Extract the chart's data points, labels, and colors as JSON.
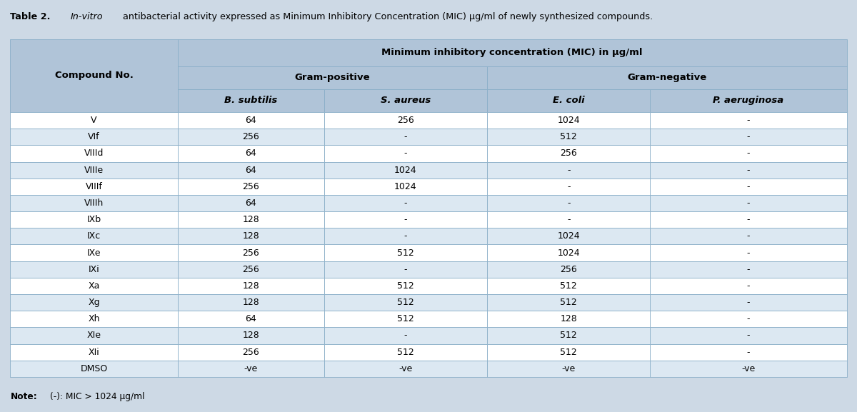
{
  "title_bold": "Table 2.",
  "title_italic": " In-vitro",
  "title_rest": " antibacterial activity expressed as Minimum Inhibitory Concentration (MIC) μg/ml of newly synthesized compounds.",
  "mic_header": "Minimum inhibitory concentration (MIC) in μg/ml",
  "gram_pos": "Gram-positive",
  "gram_neg": "Gram-negative",
  "col0_header": "Compound No.",
  "species": [
    "B. subtilis",
    "S. aureus",
    "E. coli",
    "P. aeruginosa"
  ],
  "compounds": [
    "V",
    "VIf",
    "VIIId",
    "VIIIe",
    "VIIIf",
    "VIIIh",
    "IXb",
    "IXc",
    "IXe",
    "IXi",
    "Xa",
    "Xg",
    "Xh",
    "XIe",
    "XIi",
    "DMSO"
  ],
  "b_subtilis": [
    "64",
    "256",
    "64",
    "64",
    "256",
    "64",
    "128",
    "128",
    "256",
    "256",
    "128",
    "128",
    "64",
    "128",
    "256",
    "-ve"
  ],
  "s_aureus": [
    "256",
    "-",
    "-",
    "1024",
    "1024",
    "-",
    "-",
    "-",
    "512",
    "-",
    "512",
    "512",
    "512",
    "-",
    "512",
    "-ve"
  ],
  "e_coli": [
    "1024",
    "512",
    "256",
    "-",
    "-",
    "-",
    "-",
    "1024",
    "1024",
    "256",
    "512",
    "512",
    "128",
    "512",
    "512",
    "-ve"
  ],
  "p_aeruginosa": [
    "-",
    "-",
    "-",
    "-",
    "-",
    "-",
    "-",
    "-",
    "-",
    "-",
    "-",
    "-",
    "-",
    "-",
    "-",
    "-ve"
  ],
  "note_bold": "Note:",
  "note_rest": " (-): MIC > 1024 μg/ml",
  "bg_color": "#cdd9e5",
  "header_bg": "#b0c4d8",
  "white_row_bg": "#ffffff",
  "alt_row_bg": "#dce8f2",
  "border_color": "#8aaec8",
  "text_color": "#000000",
  "fig_width": 12.0,
  "fig_height": 5.77
}
